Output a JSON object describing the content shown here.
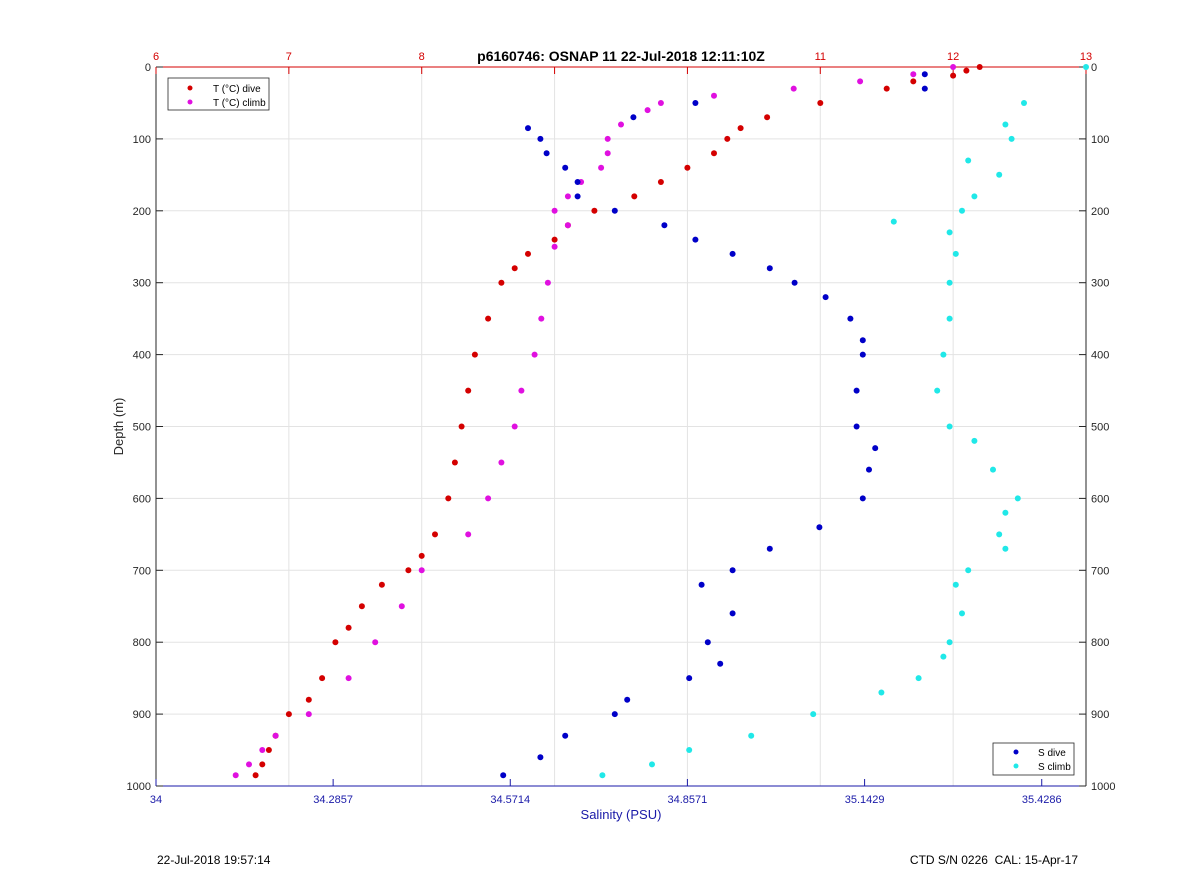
{
  "title": "p6160746: OSNAP 11 22-Jul-2018 12:11:10Z",
  "footer": {
    "left": "22-Jul-2018 19:57:14",
    "right": "CTD S/N 0226  CAL: 15-Apr-17"
  },
  "colors": {
    "t_dive": "#d40000",
    "t_climb": "#e010e0",
    "s_dive": "#0000c8",
    "s_climb": "#20e8e8",
    "temp_axis": "#d40000",
    "sal_axis": "#1a1aa8",
    "grid": "#e3e3e3"
  },
  "chart_data": {
    "type": "scatter",
    "ylabel": "Depth (m)",
    "ylim": [
      1000,
      0
    ],
    "yticks": [
      0,
      100,
      200,
      300,
      400,
      500,
      600,
      700,
      800,
      900,
      1000
    ],
    "ytick_labels": [
      "0",
      "100",
      "200",
      "300",
      "400",
      "500",
      "600",
      "700",
      "800",
      "900",
      "1000"
    ],
    "x_top": {
      "label": "",
      "lim": [
        6,
        13
      ],
      "ticks": [
        6,
        7,
        8,
        9,
        10,
        11,
        12,
        13
      ],
      "tick_labels": [
        "6",
        "7",
        "8",
        "",
        "",
        "11",
        "12",
        "13"
      ]
    },
    "x_bottom": {
      "label": "Salinity (PSU)",
      "lim": [
        34,
        35.5
      ],
      "ticks": [
        34,
        34.2857,
        34.5714,
        34.8571,
        35.1429,
        35.4286
      ],
      "tick_labels": [
        "34",
        "34.2857",
        "34.5714",
        "34.8571",
        "35.1429",
        "35.4286"
      ]
    },
    "grid": true,
    "legend_temp": {
      "location": "top-left",
      "entries": [
        "T (°C) dive",
        "T (°C) climb"
      ]
    },
    "legend_sal": {
      "location": "bottom-right",
      "entries": [
        "S dive",
        "S climb"
      ]
    },
    "series": [
      {
        "name": "T (°C) dive",
        "axis": "top",
        "depth": [
          0,
          5,
          12,
          20,
          30,
          50,
          70,
          85,
          100,
          120,
          140,
          160,
          180,
          200,
          220,
          240,
          260,
          280,
          300,
          350,
          400,
          450,
          500,
          550,
          600,
          650,
          680,
          700,
          720,
          750,
          780,
          800,
          850,
          880,
          900,
          930,
          950,
          970,
          985
        ],
        "values": [
          12.2,
          12.1,
          12.0,
          11.7,
          11.5,
          11.0,
          10.6,
          10.4,
          10.3,
          10.2,
          10.0,
          9.8,
          9.6,
          9.3,
          9.1,
          9.0,
          8.8,
          8.7,
          8.6,
          8.5,
          8.4,
          8.35,
          8.3,
          8.25,
          8.2,
          8.1,
          8.0,
          7.9,
          7.7,
          7.55,
          7.45,
          7.35,
          7.25,
          7.15,
          7.0,
          6.9,
          6.85,
          6.8,
          6.75
        ]
      },
      {
        "name": "T (°C) climb",
        "axis": "top",
        "depth": [
          0,
          10,
          20,
          30,
          40,
          50,
          60,
          80,
          100,
          120,
          140,
          160,
          180,
          200,
          220,
          250,
          300,
          350,
          400,
          450,
          500,
          550,
          600,
          650,
          700,
          750,
          800,
          850,
          900,
          930,
          950,
          970,
          985
        ],
        "values": [
          12.0,
          11.7,
          11.3,
          10.8,
          10.2,
          9.8,
          9.7,
          9.5,
          9.4,
          9.4,
          9.35,
          9.2,
          9.1,
          9.0,
          9.1,
          9.0,
          8.95,
          8.9,
          8.85,
          8.75,
          8.7,
          8.6,
          8.5,
          8.35,
          8.0,
          7.85,
          7.65,
          7.45,
          7.15,
          6.9,
          6.8,
          6.7,
          6.6
        ]
      },
      {
        "name": "S dive",
        "axis": "bottom",
        "depth": [
          10,
          30,
          50,
          70,
          85,
          100,
          120,
          140,
          160,
          180,
          200,
          220,
          240,
          260,
          280,
          300,
          320,
          350,
          380,
          400,
          450,
          500,
          530,
          560,
          600,
          640,
          670,
          700,
          720,
          760,
          800,
          830,
          850,
          880,
          900,
          930,
          960,
          985
        ],
        "values": [
          35.24,
          35.24,
          34.87,
          34.77,
          34.6,
          34.62,
          34.63,
          34.66,
          34.68,
          34.68,
          34.74,
          34.82,
          34.87,
          34.93,
          34.99,
          35.03,
          35.08,
          35.12,
          35.14,
          35.14,
          35.13,
          35.13,
          35.16,
          35.15,
          35.14,
          35.07,
          34.99,
          34.93,
          34.88,
          34.93,
          34.89,
          34.91,
          34.86,
          34.76,
          34.74,
          34.66,
          34.62,
          34.56
        ]
      },
      {
        "name": "S climb",
        "axis": "bottom",
        "depth": [
          0,
          50,
          80,
          100,
          130,
          150,
          180,
          200,
          215,
          230,
          260,
          300,
          350,
          400,
          450,
          500,
          520,
          560,
          600,
          620,
          650,
          670,
          700,
          720,
          760,
          800,
          820,
          850,
          870,
          900,
          930,
          950,
          970,
          985
        ],
        "values": [
          35.5,
          35.4,
          35.37,
          35.38,
          35.31,
          35.36,
          35.32,
          35.3,
          35.19,
          35.28,
          35.29,
          35.28,
          35.28,
          35.27,
          35.26,
          35.28,
          35.32,
          35.35,
          35.39,
          35.37,
          35.36,
          35.37,
          35.31,
          35.29,
          35.3,
          35.28,
          35.27,
          35.23,
          35.17,
          35.06,
          34.96,
          34.86,
          34.8,
          34.72
        ]
      }
    ]
  }
}
